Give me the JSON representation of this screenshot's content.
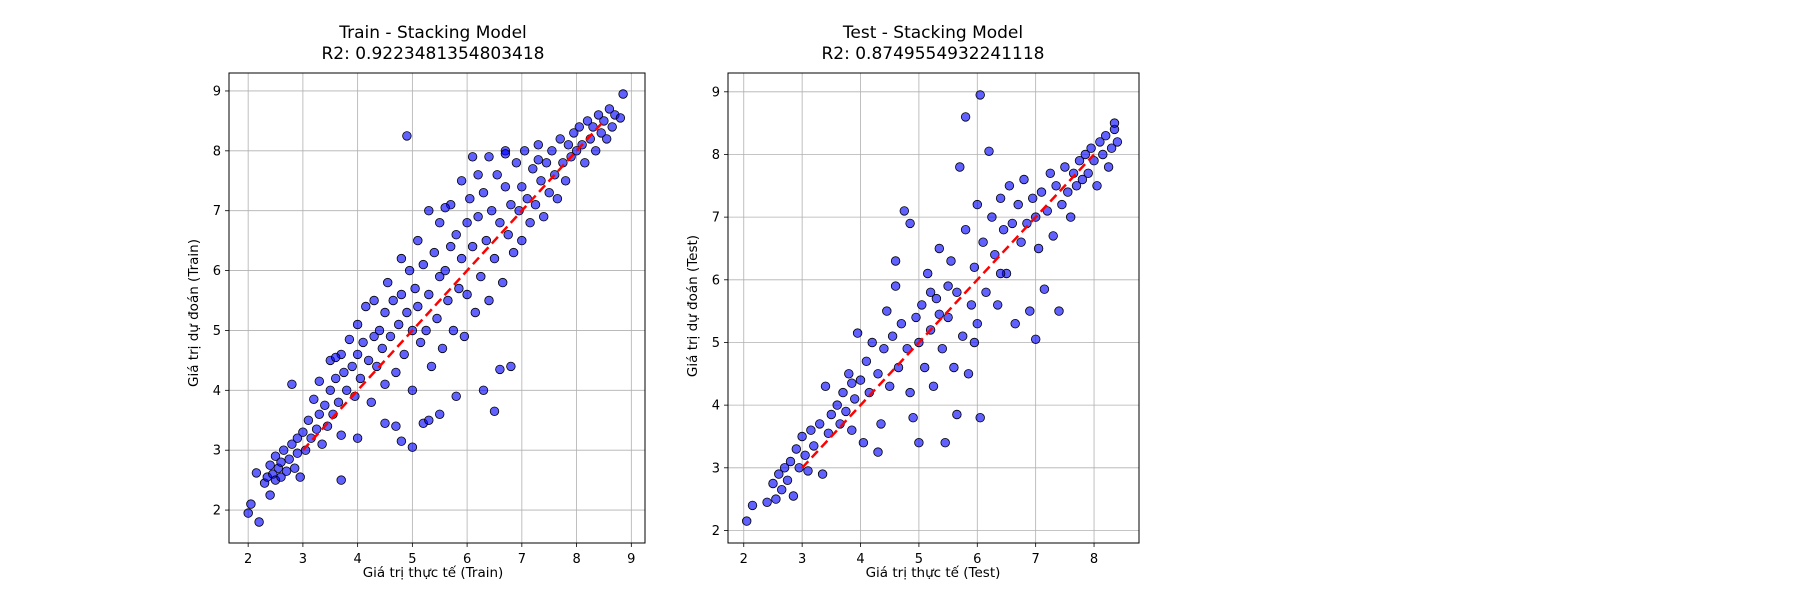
{
  "chart_data": [
    {
      "type": "scatter",
      "title": "Train - Stacking Model",
      "subtitle": "R2: 0.9223481354803418",
      "xlabel": "Giá trị thực tế (Train)",
      "ylabel": "Giá trị dự đoán (Train)",
      "xlim": [
        1.65,
        9.25
      ],
      "ylim": [
        1.45,
        9.3
      ],
      "xticks": [
        2,
        3,
        4,
        5,
        6,
        7,
        8,
        9
      ],
      "yticks": [
        2,
        3,
        4,
        5,
        6,
        7,
        8,
        9
      ],
      "grid": true,
      "point_color": "#0000ff",
      "edge_color": "#000000",
      "reference_line": {
        "x": [
          3,
          8.5
        ],
        "y": [
          3,
          8.5
        ],
        "color": "#ff0000",
        "style": "dashed"
      },
      "points": [
        [
          2.0,
          1.95
        ],
        [
          2.05,
          2.1
        ],
        [
          2.15,
          2.62
        ],
        [
          2.2,
          1.8
        ],
        [
          2.3,
          2.45
        ],
        [
          2.35,
          2.55
        ],
        [
          2.4,
          2.75
        ],
        [
          2.45,
          2.6
        ],
        [
          2.5,
          2.5
        ],
        [
          2.5,
          2.9
        ],
        [
          2.55,
          2.7
        ],
        [
          2.6,
          2.8
        ],
        [
          2.6,
          2.55
        ],
        [
          2.65,
          3.0
        ],
        [
          2.7,
          2.65
        ],
        [
          2.75,
          2.85
        ],
        [
          2.8,
          3.1
        ],
        [
          2.85,
          2.7
        ],
        [
          2.9,
          3.2
        ],
        [
          2.9,
          2.95
        ],
        [
          2.95,
          2.55
        ],
        [
          2.4,
          2.25
        ],
        [
          2.8,
          4.1
        ],
        [
          3.0,
          3.3
        ],
        [
          3.05,
          3.0
        ],
        [
          3.1,
          3.5
        ],
        [
          3.15,
          3.2
        ],
        [
          3.2,
          3.85
        ],
        [
          3.25,
          3.35
        ],
        [
          3.3,
          3.6
        ],
        [
          3.3,
          4.15
        ],
        [
          3.35,
          3.1
        ],
        [
          3.4,
          3.75
        ],
        [
          3.45,
          3.4
        ],
        [
          3.5,
          4.0
        ],
        [
          3.5,
          4.5
        ],
        [
          3.55,
          3.6
        ],
        [
          3.6,
          4.2
        ],
        [
          3.65,
          3.8
        ],
        [
          3.7,
          4.6
        ],
        [
          3.7,
          3.25
        ],
        [
          3.75,
          4.3
        ],
        [
          3.8,
          4.0
        ],
        [
          3.85,
          4.85
        ],
        [
          3.9,
          4.4
        ],
        [
          3.95,
          3.9
        ],
        [
          4.0,
          4.6
        ],
        [
          4.0,
          5.1
        ],
        [
          4.05,
          4.2
        ],
        [
          4.1,
          4.8
        ],
        [
          4.15,
          5.4
        ],
        [
          4.2,
          4.5
        ],
        [
          4.25,
          3.8
        ],
        [
          4.3,
          4.9
        ],
        [
          4.3,
          5.5
        ],
        [
          4.35,
          4.4
        ],
        [
          4.4,
          5.0
        ],
        [
          4.45,
          4.7
        ],
        [
          4.5,
          5.3
        ],
        [
          4.5,
          4.1
        ],
        [
          4.55,
          5.8
        ],
        [
          4.6,
          4.9
        ],
        [
          4.65,
          5.5
        ],
        [
          4.7,
          4.3
        ],
        [
          4.75,
          5.1
        ],
        [
          4.8,
          6.2
        ],
        [
          4.8,
          5.6
        ],
        [
          4.85,
          4.6
        ],
        [
          4.9,
          5.3
        ],
        [
          4.95,
          6.0
        ],
        [
          5.0,
          5.0
        ],
        [
          5.0,
          4.0
        ],
        [
          5.05,
          5.7
        ],
        [
          5.1,
          6.5
        ],
        [
          5.1,
          5.4
        ],
        [
          5.15,
          4.8
        ],
        [
          5.2,
          6.1
        ],
        [
          5.25,
          5.0
        ],
        [
          5.3,
          7.0
        ],
        [
          5.3,
          5.6
        ],
        [
          5.35,
          4.4
        ],
        [
          5.4,
          6.3
        ],
        [
          5.45,
          5.2
        ],
        [
          5.5,
          6.8
        ],
        [
          5.5,
          5.9
        ],
        [
          5.55,
          4.7
        ],
        [
          5.6,
          6.0
        ],
        [
          5.65,
          5.5
        ],
        [
          5.7,
          7.1
        ],
        [
          5.7,
          6.4
        ],
        [
          5.75,
          5.0
        ],
        [
          5.8,
          6.6
        ],
        [
          5.85,
          5.7
        ],
        [
          5.9,
          7.5
        ],
        [
          5.9,
          6.2
        ],
        [
          5.95,
          4.9
        ],
        [
          6.0,
          6.8
        ],
        [
          6.0,
          5.6
        ],
        [
          6.05,
          7.2
        ],
        [
          6.1,
          6.4
        ],
        [
          6.15,
          5.3
        ],
        [
          6.2,
          7.6
        ],
        [
          6.2,
          6.9
        ],
        [
          6.25,
          5.9
        ],
        [
          6.3,
          7.3
        ],
        [
          6.35,
          6.5
        ],
        [
          6.4,
          7.9
        ],
        [
          6.4,
          5.5
        ],
        [
          6.45,
          7.0
        ],
        [
          6.5,
          6.2
        ],
        [
          6.55,
          7.6
        ],
        [
          6.6,
          6.8
        ],
        [
          6.65,
          5.8
        ],
        [
          6.7,
          7.4
        ],
        [
          6.7,
          8.0
        ],
        [
          6.75,
          6.6
        ],
        [
          6.8,
          7.1
        ],
        [
          6.85,
          6.3
        ],
        [
          6.9,
          7.8
        ],
        [
          6.95,
          7.0
        ],
        [
          7.0,
          7.4
        ],
        [
          7.0,
          6.5
        ],
        [
          7.05,
          8.0
        ],
        [
          7.1,
          7.2
        ],
        [
          7.15,
          6.8
        ],
        [
          7.2,
          7.7
        ],
        [
          7.25,
          7.1
        ],
        [
          7.3,
          8.1
        ],
        [
          7.35,
          7.5
        ],
        [
          7.4,
          6.9
        ],
        [
          7.45,
          7.8
        ],
        [
          7.5,
          7.3
        ],
        [
          7.55,
          8.0
        ],
        [
          7.6,
          7.6
        ],
        [
          7.65,
          7.2
        ],
        [
          7.7,
          8.2
        ],
        [
          7.75,
          7.8
        ],
        [
          7.8,
          7.5
        ],
        [
          7.85,
          8.1
        ],
        [
          7.9,
          7.9
        ],
        [
          7.95,
          8.3
        ],
        [
          8.0,
          8.0
        ],
        [
          8.05,
          8.4
        ],
        [
          8.1,
          8.1
        ],
        [
          8.15,
          7.8
        ],
        [
          8.2,
          8.5
        ],
        [
          8.25,
          8.2
        ],
        [
          8.3,
          8.4
        ],
        [
          8.35,
          8.0
        ],
        [
          8.4,
          8.6
        ],
        [
          8.45,
          8.3
        ],
        [
          8.5,
          8.5
        ],
        [
          8.55,
          8.2
        ],
        [
          8.6,
          8.7
        ],
        [
          8.65,
          8.4
        ],
        [
          8.7,
          8.6
        ],
        [
          8.8,
          8.55
        ],
        [
          8.85,
          8.95
        ],
        [
          4.9,
          8.25
        ],
        [
          5.0,
          3.05
        ],
        [
          4.7,
          3.4
        ],
        [
          5.2,
          3.45
        ],
        [
          5.5,
          3.6
        ],
        [
          5.8,
          3.9
        ],
        [
          6.6,
          4.35
        ],
        [
          6.5,
          3.65
        ],
        [
          3.7,
          2.5
        ],
        [
          4.0,
          3.2
        ],
        [
          4.5,
          3.45
        ],
        [
          6.8,
          4.4
        ],
        [
          6.1,
          7.9
        ],
        [
          7.3,
          7.85
        ],
        [
          3.6,
          4.55
        ],
        [
          4.8,
          3.15
        ],
        [
          5.3,
          3.5
        ],
        [
          6.3,
          4.0
        ],
        [
          5.6,
          7.05
        ],
        [
          6.7,
          7.95
        ]
      ]
    },
    {
      "type": "scatter",
      "title": "Test - Stacking Model",
      "subtitle": "R2: 0.8749554932241118",
      "xlabel": "Giá trị thực tế (Test)",
      "ylabel": "Giá trị dự đoán (Test)",
      "xlim": [
        1.73,
        8.77
      ],
      "ylim": [
        1.8,
        9.3
      ],
      "xticks": [
        2,
        3,
        4,
        5,
        6,
        7,
        8
      ],
      "yticks": [
        2,
        3,
        4,
        5,
        6,
        7,
        8,
        9
      ],
      "grid": true,
      "point_color": "#0000ff",
      "edge_color": "#000000",
      "reference_line": {
        "x": [
          3,
          8
        ],
        "y": [
          3,
          8
        ],
        "color": "#ff0000",
        "style": "dashed"
      },
      "points": [
        [
          2.05,
          2.15
        ],
        [
          2.15,
          2.4
        ],
        [
          2.4,
          2.45
        ],
        [
          2.5,
          2.75
        ],
        [
          2.55,
          2.5
        ],
        [
          2.6,
          2.9
        ],
        [
          2.65,
          2.65
        ],
        [
          2.7,
          3.0
        ],
        [
          2.75,
          2.8
        ],
        [
          2.8,
          3.1
        ],
        [
          2.85,
          2.55
        ],
        [
          2.9,
          3.3
        ],
        [
          2.95,
          3.0
        ],
        [
          3.0,
          3.5
        ],
        [
          3.05,
          3.2
        ],
        [
          3.1,
          2.95
        ],
        [
          3.15,
          3.6
        ],
        [
          3.2,
          3.35
        ],
        [
          3.3,
          3.7
        ],
        [
          3.35,
          2.9
        ],
        [
          3.4,
          4.3
        ],
        [
          3.45,
          3.55
        ],
        [
          3.5,
          3.85
        ],
        [
          3.6,
          4.0
        ],
        [
          3.65,
          3.7
        ],
        [
          3.7,
          4.2
        ],
        [
          3.75,
          3.9
        ],
        [
          3.8,
          4.5
        ],
        [
          3.85,
          3.6
        ],
        [
          3.9,
          4.1
        ],
        [
          3.95,
          5.15
        ],
        [
          4.0,
          4.4
        ],
        [
          4.05,
          3.4
        ],
        [
          4.1,
          4.7
        ],
        [
          4.15,
          4.2
        ],
        [
          4.2,
          5.0
        ],
        [
          4.3,
          4.5
        ],
        [
          4.35,
          3.7
        ],
        [
          4.4,
          4.9
        ],
        [
          4.45,
          5.5
        ],
        [
          4.5,
          4.3
        ],
        [
          4.55,
          5.1
        ],
        [
          4.6,
          6.3
        ],
        [
          4.65,
          4.6
        ],
        [
          4.7,
          5.3
        ],
        [
          4.75,
          7.1
        ],
        [
          4.8,
          4.9
        ],
        [
          4.85,
          6.9
        ],
        [
          4.9,
          3.8
        ],
        [
          4.95,
          5.4
        ],
        [
          5.0,
          5.0
        ],
        [
          5.0,
          3.4
        ],
        [
          5.05,
          5.6
        ],
        [
          5.1,
          4.6
        ],
        [
          5.15,
          6.1
        ],
        [
          5.2,
          5.2
        ],
        [
          5.25,
          4.3
        ],
        [
          5.3,
          5.7
        ],
        [
          5.35,
          6.5
        ],
        [
          5.4,
          4.9
        ],
        [
          5.45,
          3.4
        ],
        [
          5.5,
          5.4
        ],
        [
          5.55,
          6.3
        ],
        [
          5.6,
          4.6
        ],
        [
          5.65,
          5.8
        ],
        [
          5.7,
          7.8
        ],
        [
          5.75,
          5.1
        ],
        [
          5.8,
          8.6
        ],
        [
          5.8,
          6.8
        ],
        [
          5.85,
          4.5
        ],
        [
          5.9,
          5.6
        ],
        [
          5.95,
          6.2
        ],
        [
          6.0,
          7.2
        ],
        [
          6.0,
          5.3
        ],
        [
          6.05,
          8.95
        ],
        [
          6.05,
          3.8
        ],
        [
          6.1,
          6.6
        ],
        [
          6.15,
          5.8
        ],
        [
          6.2,
          8.05
        ],
        [
          6.25,
          7.0
        ],
        [
          6.3,
          6.4
        ],
        [
          6.35,
          5.6
        ],
        [
          6.4,
          7.3
        ],
        [
          6.45,
          6.8
        ],
        [
          6.5,
          6.1
        ],
        [
          6.55,
          7.5
        ],
        [
          6.6,
          6.9
        ],
        [
          6.65,
          5.3
        ],
        [
          6.7,
          7.2
        ],
        [
          6.75,
          6.6
        ],
        [
          6.8,
          7.6
        ],
        [
          6.85,
          6.9
        ],
        [
          6.9,
          5.5
        ],
        [
          6.95,
          7.3
        ],
        [
          7.0,
          7.0
        ],
        [
          7.0,
          5.05
        ],
        [
          7.05,
          6.5
        ],
        [
          7.1,
          7.4
        ],
        [
          7.15,
          5.85
        ],
        [
          7.2,
          7.1
        ],
        [
          7.25,
          7.7
        ],
        [
          7.3,
          6.7
        ],
        [
          7.35,
          7.5
        ],
        [
          7.4,
          5.5
        ],
        [
          7.45,
          7.2
        ],
        [
          7.5,
          7.8
        ],
        [
          7.55,
          7.4
        ],
        [
          7.6,
          7.0
        ],
        [
          7.65,
          7.7
        ],
        [
          7.7,
          7.5
        ],
        [
          7.75,
          7.9
        ],
        [
          7.8,
          7.6
        ],
        [
          7.85,
          8.0
        ],
        [
          7.9,
          7.7
        ],
        [
          7.95,
          8.1
        ],
        [
          8.0,
          7.9
        ],
        [
          8.05,
          7.5
        ],
        [
          8.1,
          8.2
        ],
        [
          8.15,
          8.0
        ],
        [
          8.2,
          8.3
        ],
        [
          8.25,
          7.8
        ],
        [
          8.3,
          8.1
        ],
        [
          8.35,
          8.4
        ],
        [
          8.4,
          8.2
        ],
        [
          8.35,
          8.5
        ],
        [
          5.5,
          5.9
        ],
        [
          5.65,
          3.85
        ],
        [
          4.3,
          3.25
        ],
        [
          4.85,
          4.2
        ],
        [
          5.2,
          5.8
        ],
        [
          3.85,
          4.35
        ],
        [
          6.4,
          6.1
        ],
        [
          5.95,
          5.0
        ],
        [
          5.35,
          5.45
        ],
        [
          4.6,
          5.9
        ]
      ]
    }
  ]
}
